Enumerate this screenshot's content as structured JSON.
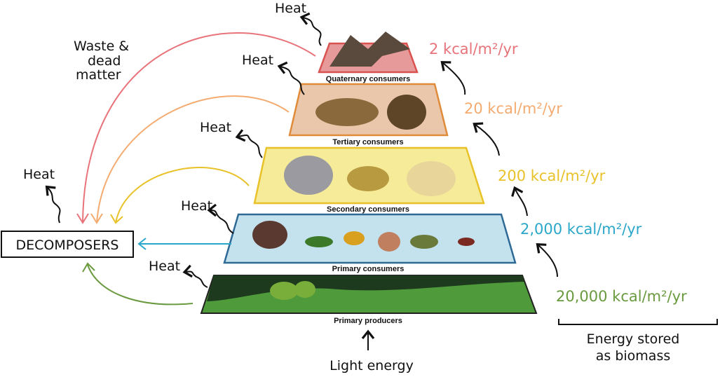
{
  "levels": [
    {
      "label": "Quaternary consumers",
      "energy": "2 kcal/m²/yr",
      "color": "#e8737a",
      "fill": "#e79a9a"
    },
    {
      "label": "Tertiary consumers",
      "energy": "20 kcal/m²/yr",
      "color": "#f4ab70",
      "fill": "#eac7aa"
    },
    {
      "label": "Secondary consumers",
      "energy": "200 kcal/m²/yr",
      "color": "#e8c228",
      "fill": "#f6eb98"
    },
    {
      "label": "Primary consumers",
      "energy": "2,000 kcal/m²/yr",
      "color": "#2aa7c9",
      "fill": "#c4e1ee"
    },
    {
      "label": "Primary producers",
      "energy": "20,000 kcal/m²/yr",
      "color": "#6a9a3f",
      "fill": "#4f9a3a"
    }
  ],
  "heat_label": "Heat",
  "waste_label": [
    "Waste &",
    "dead",
    "matter"
  ],
  "decomposers": "DECOMPOSERS",
  "light_energy": "Light energy",
  "energy_stored": [
    "Energy stored",
    "as biomass"
  ]
}
